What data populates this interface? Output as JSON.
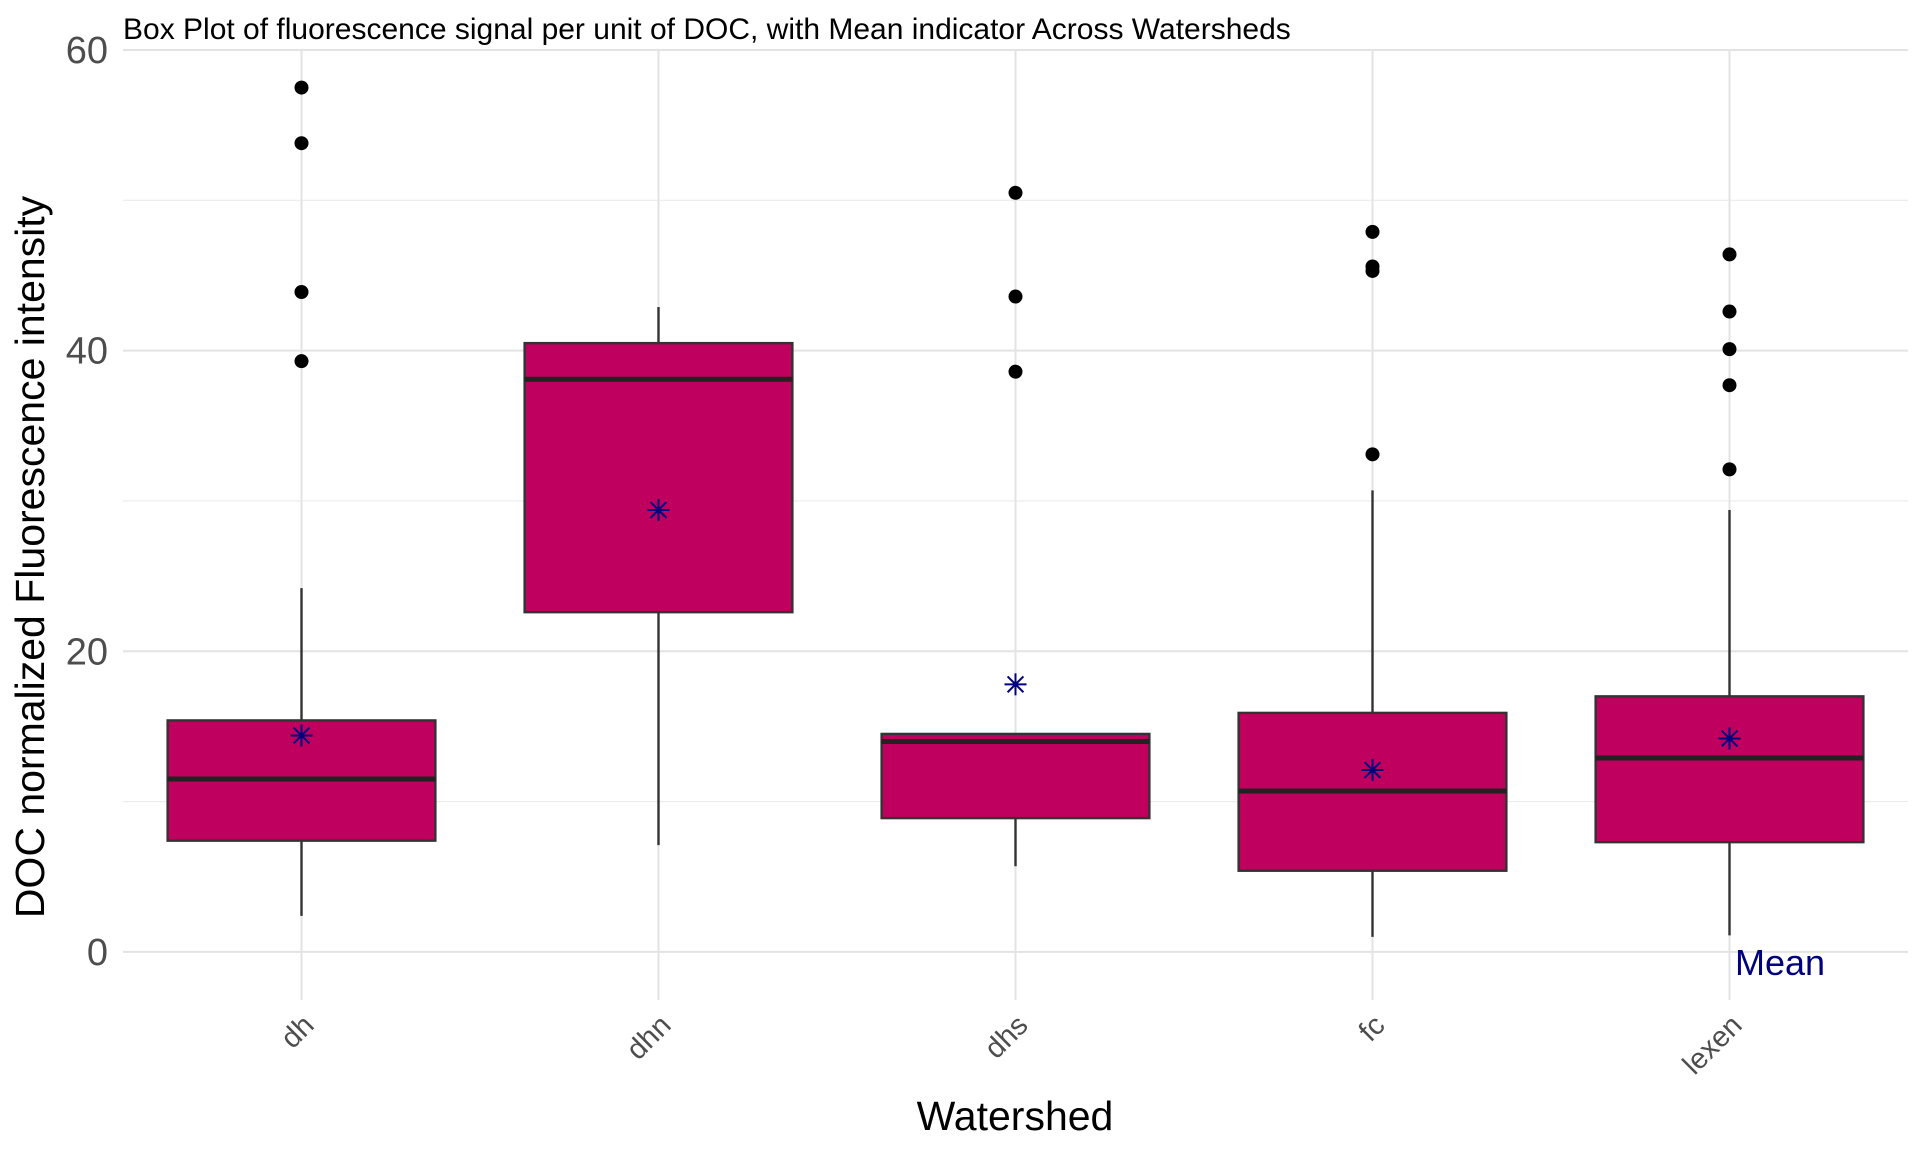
{
  "chart_data": {
    "type": "box",
    "title": "Box Plot of fluorescence signal per unit of DOC, with Mean indicator Across Watersheds",
    "xlabel": "Watershed",
    "ylabel": "DOC normalized Fluorescence intensity",
    "ylim": [
      -3.2,
      60
    ],
    "yticks": [
      0,
      20,
      40,
      60
    ],
    "grid": true,
    "box_color": "#BF005F",
    "mean_color": "#00007F",
    "mean_annotation": "Mean",
    "categories": [
      "dh",
      "dhn",
      "dhs",
      "fc",
      "lexen"
    ],
    "boxes": [
      {
        "category": "dh",
        "whisker_low": 2.4,
        "q1": 7.4,
        "median": 11.5,
        "q3": 15.4,
        "whisker_high": 24.2,
        "mean": 14.4,
        "outliers": [
          39.3,
          43.9,
          53.8,
          57.5
        ]
      },
      {
        "category": "dhn",
        "whisker_low": 7.1,
        "q1": 22.6,
        "median": 38.1,
        "q3": 40.5,
        "whisker_high": 42.9,
        "mean": 29.4,
        "outliers": []
      },
      {
        "category": "dhs",
        "whisker_low": 5.7,
        "q1": 8.9,
        "median": 14.0,
        "q3": 14.5,
        "whisker_high": 14.5,
        "mean": 17.8,
        "outliers": [
          38.6,
          43.6,
          50.5
        ]
      },
      {
        "category": "fc",
        "whisker_low": 1.0,
        "q1": 5.4,
        "median": 10.7,
        "q3": 15.9,
        "whisker_high": 30.7,
        "mean": 12.1,
        "outliers": [
          33.1,
          45.3,
          45.6,
          47.9
        ]
      },
      {
        "category": "lexen",
        "whisker_low": 1.1,
        "q1": 7.3,
        "median": 12.9,
        "q3": 17.0,
        "whisker_high": 29.4,
        "mean": 14.2,
        "outliers": [
          32.1,
          37.7,
          40.1,
          42.6,
          46.4
        ]
      }
    ]
  }
}
